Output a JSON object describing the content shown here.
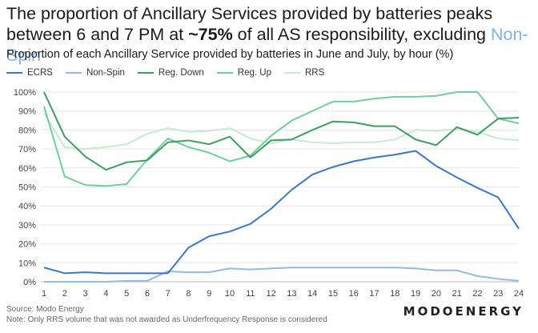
{
  "title": {
    "line1": "The proportion of Ancillary Services provided by batteries peaks",
    "line2_prefix": "between 6 and 7 PM at ",
    "line2_bold": "~75%",
    "line2_mid": " of all AS responsibility, excluding ",
    "line2_highlight": "Non-Spin"
  },
  "subtitle": "Proportion of each Ancillary Service provided by batteries in June and July, by hour (%)",
  "source": "Source: Modo Energy",
  "note": "Note: Only RRS volume that was not awarded as Underfrequency Response is considered",
  "brand": "MODOENERGY",
  "chart_data": {
    "type": "line",
    "x": [
      1,
      2,
      3,
      4,
      5,
      6,
      7,
      8,
      9,
      10,
      11,
      12,
      13,
      14,
      15,
      16,
      17,
      18,
      19,
      20,
      21,
      22,
      23,
      24
    ],
    "ylim": [
      0,
      100
    ],
    "yticks": [
      "0%",
      "10%",
      "20%",
      "30%",
      "40%",
      "50%",
      "60%",
      "70%",
      "80%",
      "90%",
      "100%"
    ],
    "xticks": [
      "1",
      "2",
      "3",
      "4",
      "5",
      "6",
      "7",
      "8",
      "9",
      "10",
      "11",
      "12",
      "13",
      "14",
      "15",
      "16",
      "17",
      "18",
      "19",
      "20",
      "21",
      "22",
      "23",
      "24"
    ],
    "grid": "horizontal",
    "legend": "top-left",
    "series": [
      {
        "name": "ECRS",
        "color": "#3a78c3",
        "values": [
          7.5,
          4.5,
          5,
          4.5,
          4.5,
          4.5,
          4.5,
          18,
          24,
          26.5,
          30.5,
          38.5,
          48.5,
          56.5,
          60.5,
          63.5,
          65.5,
          67,
          69,
          61,
          55,
          49.5,
          44.5,
          28
        ]
      },
      {
        "name": "Non-Spin",
        "color": "#8fbbe6",
        "values": [
          0,
          0,
          0,
          0,
          0.5,
          0.5,
          5.5,
          5,
          5,
          7,
          6.5,
          7,
          7.5,
          7.5,
          7.5,
          7.5,
          7.5,
          7.5,
          7,
          6,
          6,
          3,
          1.5,
          0.5
        ]
      },
      {
        "name": "Reg. Down",
        "color": "#3c9e5f",
        "values": [
          100,
          76.5,
          66,
          59,
          63,
          64,
          73.5,
          74.5,
          72.5,
          76.5,
          65.5,
          74.5,
          75,
          80,
          84.5,
          84,
          82,
          82,
          75,
          72,
          81.5,
          77.5,
          86,
          86.5
        ]
      },
      {
        "name": "Reg. Up",
        "color": "#72cf95",
        "values": [
          92.5,
          55.5,
          51,
          50.5,
          51.5,
          64.5,
          75.5,
          71,
          68,
          63.5,
          66.5,
          77,
          85,
          90,
          95,
          95,
          96.5,
          97.5,
          97.5,
          98,
          100,
          100,
          86,
          83.5
        ]
      },
      {
        "name": "RRS",
        "color": "#c6ead2",
        "values": [
          89,
          71,
          70,
          71,
          72.5,
          78,
          81,
          79,
          79.5,
          81,
          75.5,
          73,
          75,
          73.5,
          73,
          73.5,
          73.5,
          75,
          80,
          79.5,
          80.5,
          79,
          75.5,
          74.5
        ]
      }
    ]
  }
}
